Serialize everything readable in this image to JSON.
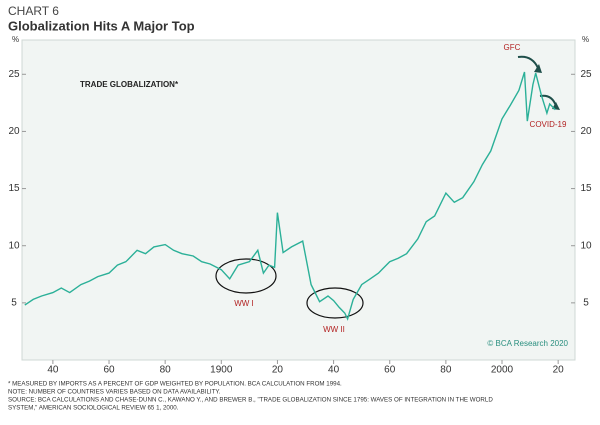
{
  "chart_data": {
    "type": "line",
    "chart_label": "CHART 6",
    "title": "Globalization Hits A Major Top",
    "series_label": "TRADE GLOBALIZATION*",
    "y_unit": "%",
    "annotations": [
      "GFC",
      "COVID-19",
      "WW I",
      "WW II"
    ],
    "copyright": "© BCA Research 2020",
    "footnotes": [
      "* MEASURED BY IMPORTS AS A PERCENT OF GDP WEIGHTED BY POPULATION. BCA CALCULATION FROM 1994.",
      "NOTE: NUMBER OF COUNTRIES VARIES BASED ON DATA AVAILABILITY.",
      "SOURCE: BCA CALCULATIONS AND CHASE-DUNN C., KAWANO Y., AND BREWER B., \"TRADE GLOBALIZATION SINCE 1795: WAVES OF INTEGRATION IN THE WORLD",
      "SYSTEM,\" AMERICAN SOCIOLOGICAL REVIEW 65 1, 2000."
    ],
    "x": [
      1830,
      1833,
      1836,
      1840,
      1843,
      1846,
      1850,
      1853,
      1856,
      1860,
      1863,
      1866,
      1870,
      1873,
      1876,
      1880,
      1883,
      1886,
      1890,
      1893,
      1896,
      1900,
      1903,
      1906,
      1910,
      1913,
      1915,
      1917,
      1919,
      1920,
      1922,
      1925,
      1929,
      1932,
      1935,
      1938,
      1940,
      1942,
      1944,
      1945,
      1947,
      1950,
      1953,
      1956,
      1960,
      1963,
      1966,
      1970,
      1973,
      1976,
      1980,
      1983,
      1986,
      1990,
      1993,
      1996,
      2000,
      2003,
      2006,
      2008,
      2009,
      2011,
      2012,
      2014,
      2016,
      2017,
      2019
    ],
    "series": [
      {
        "name": "Trade globalization",
        "color": "#2bb098",
        "values": [
          4.8,
          5.3,
          5.6,
          5.9,
          6.3,
          5.9,
          6.6,
          6.9,
          7.3,
          7.6,
          8.3,
          8.6,
          9.6,
          9.3,
          9.9,
          10.1,
          9.6,
          9.3,
          9.1,
          8.6,
          8.4,
          7.9,
          7.1,
          8.3,
          8.6,
          9.6,
          7.6,
          8.3,
          8.1,
          12.9,
          9.4,
          9.9,
          10.4,
          6.6,
          5.1,
          5.6,
          5.2,
          4.6,
          4.1,
          3.6,
          5.3,
          6.6,
          7.1,
          7.6,
          8.6,
          8.9,
          9.3,
          10.6,
          12.1,
          12.6,
          14.6,
          13.8,
          14.2,
          15.6,
          17.1,
          18.3,
          21.1,
          22.3,
          23.6,
          25.2,
          20.9,
          24.1,
          25.1,
          23.2,
          21.6,
          22.4,
          21.9
        ]
      }
    ],
    "xlim": [
      1829,
      2026
    ],
    "xticks": [
      {
        "value": 1840,
        "label": "40"
      },
      {
        "value": 1860,
        "label": "60"
      },
      {
        "value": 1880,
        "label": "80"
      },
      1900,
      {
        "value": 1920,
        "label": "20"
      },
      {
        "value": 1940,
        "label": "40"
      },
      {
        "value": 1960,
        "label": "60"
      },
      {
        "value": 1980,
        "label": "80"
      },
      2000,
      {
        "value": 2020,
        "label": "20"
      }
    ],
    "ylim": [
      0,
      28
    ],
    "yticks": [
      5,
      10,
      15,
      20,
      25
    ]
  }
}
